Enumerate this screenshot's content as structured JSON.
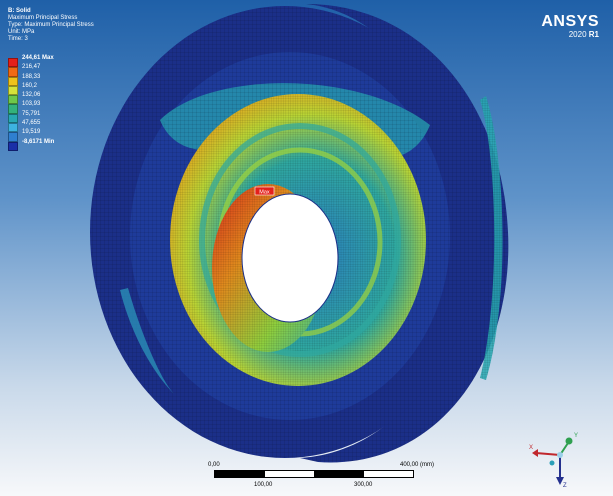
{
  "header": {
    "lines": [
      "B: Solid",
      "Maximum Principal Stress",
      "Type: Maximum Principal Stress",
      "Unit: MPa",
      "Time: 3"
    ]
  },
  "legend": {
    "entries": [
      {
        "label": "244,61 Max",
        "color": "#e4201a"
      },
      {
        "label": "216,47",
        "color": "#f06a13"
      },
      {
        "label": "188,33",
        "color": "#eec21b"
      },
      {
        "label": "160,2",
        "color": "#d6e23a"
      },
      {
        "label": "132,06",
        "color": "#6ec84a"
      },
      {
        "label": "103,93",
        "color": "#33b27c"
      },
      {
        "label": "75,791",
        "color": "#27a8b2"
      },
      {
        "label": "47,655",
        "color": "#3db3e0"
      },
      {
        "label": "19,519",
        "color": "#2f7fd0"
      },
      {
        "label": "-8,6171 Min",
        "color": "#1a2fa8"
      }
    ]
  },
  "logo": {
    "brand": "ANSYS",
    "version": "2020",
    "release": "R1"
  },
  "probe": {
    "label": "Max"
  },
  "scale_bar": {
    "start": "0,00",
    "mid1": "100,00",
    "mid2": "300,00",
    "end": "400,00 (mm)"
  },
  "triad": {
    "axes": [
      "X",
      "Y",
      "Z"
    ]
  },
  "colors": {
    "background_top": "#1f60a8",
    "background_bottom": "#f7f8fa",
    "mesh_blue": "#1b2f88",
    "mesh_teal": "#27a8b2",
    "max_red": "#e4201a"
  }
}
